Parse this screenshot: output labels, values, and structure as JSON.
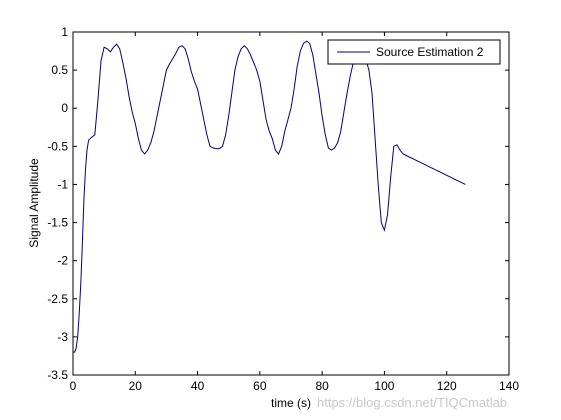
{
  "chart_data": {
    "type": "line",
    "title": "",
    "xlabel": "time (s)",
    "ylabel": "Signal Amplitude",
    "xlim": [
      0,
      140
    ],
    "ylim": [
      -3.5,
      1
    ],
    "xticks": [
      0,
      20,
      40,
      60,
      80,
      100,
      120,
      140
    ],
    "xtick_labels": [
      "0",
      "20",
      "40",
      "60",
      "80",
      "100",
      "120",
      "140"
    ],
    "yticks": [
      -3.5,
      -3,
      -2.5,
      -2,
      -1.5,
      -1,
      -0.5,
      0,
      0.5,
      1
    ],
    "ytick_labels": [
      "-3.5",
      "-3",
      "-2.5",
      "-2",
      "-1.5",
      "-1",
      "-0.5",
      "0",
      "0.5",
      "1"
    ],
    "grid": false,
    "legend_position": "top-right",
    "series": [
      {
        "name": "Source Estimation 2",
        "color": "#00007f",
        "x": [
          0,
          0.5,
          1,
          1.5,
          2,
          2.5,
          3,
          3.5,
          4,
          4.5,
          5,
          6,
          7,
          8,
          9,
          10,
          11,
          12,
          13,
          14,
          15,
          16,
          17,
          18,
          19,
          20,
          21,
          22,
          23,
          24,
          25,
          26,
          27,
          28,
          29,
          30,
          31,
          32,
          33,
          34,
          35,
          36,
          37,
          38,
          39,
          40,
          41,
          42,
          43,
          44,
          45,
          46,
          47,
          48,
          49,
          50,
          51,
          52,
          53,
          54,
          55,
          56,
          57,
          58,
          59,
          60,
          61,
          62,
          63,
          64,
          65,
          66,
          67,
          68,
          69,
          70,
          71,
          72,
          73,
          74,
          75,
          76,
          77,
          78,
          79,
          80,
          81,
          82,
          83,
          84,
          85,
          86,
          87,
          88,
          89,
          90,
          91,
          92,
          93,
          94,
          95,
          96,
          97,
          98,
          99,
          100,
          101,
          102,
          103,
          104,
          105,
          106,
          107,
          108,
          109,
          110,
          111,
          112,
          113,
          114,
          115,
          116,
          117,
          118,
          119,
          120,
          121,
          122,
          123,
          124,
          125,
          126
        ],
        "y": [
          -3.2,
          -3.2,
          -3.15,
          -3.0,
          -2.7,
          -2.3,
          -1.8,
          -1.2,
          -0.8,
          -0.55,
          -0.42,
          -0.38,
          -0.35,
          0.1,
          0.62,
          0.8,
          0.78,
          0.74,
          0.8,
          0.84,
          0.78,
          0.6,
          0.4,
          0.15,
          -0.05,
          -0.2,
          -0.4,
          -0.55,
          -0.6,
          -0.55,
          -0.45,
          -0.3,
          -0.1,
          0.1,
          0.3,
          0.5,
          0.58,
          0.65,
          0.72,
          0.8,
          0.82,
          0.78,
          0.65,
          0.48,
          0.35,
          0.25,
          0.05,
          -0.15,
          -0.35,
          -0.5,
          -0.52,
          -0.53,
          -0.53,
          -0.5,
          -0.35,
          -0.1,
          0.2,
          0.5,
          0.68,
          0.78,
          0.82,
          0.78,
          0.7,
          0.6,
          0.5,
          0.35,
          0.1,
          -0.15,
          -0.3,
          -0.4,
          -0.55,
          -0.6,
          -0.5,
          -0.3,
          -0.15,
          0.0,
          0.25,
          0.55,
          0.75,
          0.85,
          0.88,
          0.85,
          0.7,
          0.45,
          0.2,
          -0.1,
          -0.35,
          -0.52,
          -0.55,
          -0.52,
          -0.45,
          -0.3,
          -0.05,
          0.2,
          0.42,
          0.6,
          0.7,
          0.75,
          0.72,
          0.65,
          0.5,
          0.2,
          -0.4,
          -1.0,
          -1.5,
          -1.6,
          -1.4,
          -0.9,
          -0.5,
          -0.48,
          -0.55,
          -0.6,
          -0.62,
          -0.64,
          -0.66,
          -0.68,
          -0.7,
          -0.72,
          -0.74,
          -0.76,
          -0.78,
          -0.8,
          -0.82,
          -0.84,
          -0.86,
          -0.88,
          -0.9,
          -0.92,
          -0.94,
          -0.96,
          -0.98,
          -1.0
        ]
      }
    ]
  },
  "watermark": "https://blog.csdn.net/TIQCmatlab"
}
